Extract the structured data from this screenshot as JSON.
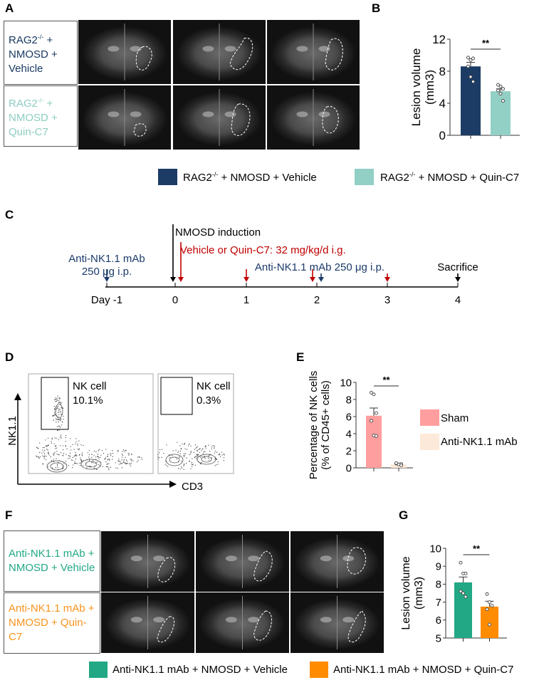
{
  "panels": {
    "A": "A",
    "B": "B",
    "C": "C",
    "D": "D",
    "E": "E",
    "F": "F",
    "G": "G"
  },
  "panelA": {
    "rows": [
      {
        "pre": "RAG2",
        "sup": "-/-",
        "post": " +",
        "l2": "NMOSD +",
        "l3": "Vehicle",
        "color": "#1b3a63"
      },
      {
        "pre": "RAG2",
        "sup": "-/-",
        "post": " +",
        "l2": "NMOSD +",
        "l3": "Quin-C7",
        "color": "#8ecdc2"
      }
    ]
  },
  "legendAB": [
    {
      "pre": "RAG2",
      "sup": "-/-",
      "post": " + NMOSD + Vehicle",
      "color": "#1c3c66"
    },
    {
      "pre": "RAG2",
      "sup": "-/-",
      "post": " + NMOSD + Quin-C7",
      "color": "#92cfc5"
    }
  ],
  "panelC": {
    "induction": "NMOSD induction",
    "treatment": "Vehicle or Quin-C7: 32 mg/kg/d i.g.",
    "mab1_l1": "Anti-NK1.1 mAb",
    "mab1_l2": "250 μg i.p.",
    "mab2": "Anti-NK1.1 mAb 250 μg i.p.",
    "sacrifice": "Sacrifice",
    "days": [
      "Day -1",
      "0",
      "1",
      "2",
      "3",
      "4"
    ],
    "red": "#c00000",
    "blue": "#1b3a6b"
  },
  "panelD": {
    "gate_label": "NK cell",
    "plots": [
      {
        "pct": "10.1%"
      },
      {
        "pct": "0.3%"
      }
    ],
    "ylabel": "NK1.1",
    "xlabel": "CD3"
  },
  "legendE": [
    {
      "label": "Sham",
      "color": "#ff9e9e"
    },
    {
      "label": "Anti-NK1.1 mAb",
      "color": "#fde9d9"
    }
  ],
  "panelF": {
    "rows": [
      {
        "l1": "Anti-NK1.1 mAb +",
        "l2": "NMOSD + Vehicle",
        "color": "#22a884"
      },
      {
        "l1": "Anti-NK1.1 mAb +",
        "l2": "NMOSD + Quin-C7",
        "color": "#f7931e"
      }
    ]
  },
  "legendFG": [
    {
      "label": "Anti-NK1.1 mAb + NMOSD + Vehicle",
      "color": "#22a884"
    },
    {
      "label": "Anti-NK1.1 mAb + NMOSD + Quin-C7",
      "color": "#ff8c00"
    }
  ],
  "chart_data": [
    {
      "id": "B",
      "type": "bar",
      "ylabel": "Lesion volume",
      "yunit": "(mm3)",
      "ylim": [
        0,
        12
      ],
      "yticks": [
        0,
        4,
        8,
        12
      ],
      "sig": "**",
      "series": [
        {
          "name": "RAG2-/- + NMOSD + Vehicle",
          "mean": 8.6,
          "sem": 0.5,
          "color": "#1c3c66",
          "points": [
            9.7,
            9.4,
            9.6,
            8.6,
            7.3,
            6.7
          ]
        },
        {
          "name": "RAG2-/- + NMOSD + Quin-C7",
          "mean": 5.5,
          "sem": 0.3,
          "color": "#92cfc5",
          "points": [
            6.3,
            6.1,
            5.8,
            5.6,
            5.2,
            4.3
          ]
        }
      ]
    },
    {
      "id": "E",
      "type": "bar",
      "ylabel": "Percentage of NK cells",
      "yunit": "(% of CD45+ cells)",
      "ylim": [
        0,
        10
      ],
      "yticks": [
        0,
        2,
        4,
        6,
        8,
        10
      ],
      "sig": "**",
      "series": [
        {
          "name": "Sham",
          "mean": 6.1,
          "sem": 0.9,
          "color": "#ff9e9e",
          "points": [
            8.8,
            8.6,
            6.4,
            5.5,
            3.8,
            3.7
          ]
        },
        {
          "name": "Anti-NK1.1 mAb",
          "mean": 0.4,
          "sem": 0.05,
          "color": "#fde9d9",
          "points": [
            0.5,
            0.4,
            0.45,
            0.55,
            0.4,
            0.3
          ]
        }
      ]
    },
    {
      "id": "G",
      "type": "bar",
      "ylabel": "Lesion volume",
      "yunit": "(mm3)",
      "ylim": [
        5,
        10
      ],
      "yticks": [
        5,
        6,
        7,
        8,
        9,
        10
      ],
      "sig": "**",
      "series": [
        {
          "name": "Anti-NK1.1 mAb + NMOSD + Vehicle",
          "mean": 8.1,
          "sem": 0.3,
          "color": "#22a884",
          "points": [
            9.2,
            8.6,
            8.6,
            7.6,
            7.5,
            7.3
          ]
        },
        {
          "name": "Anti-NK1.1 mAb + NMOSD + Quin-C7",
          "mean": 6.75,
          "sem": 0.3,
          "color": "#ff8c00",
          "points": [
            7.45,
            7.0,
            6.8,
            6.6,
            5.75
          ]
        }
      ]
    }
  ]
}
